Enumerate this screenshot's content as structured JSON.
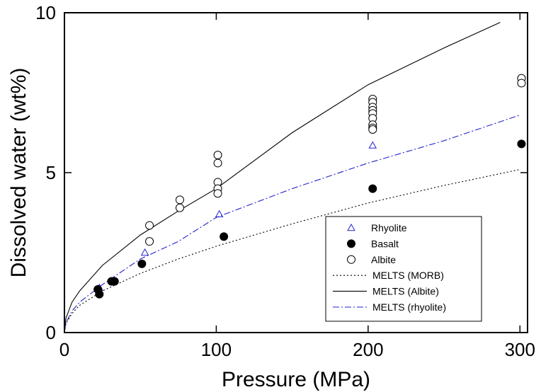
{
  "chart_data": {
    "type": "scatter",
    "xlabel": "Pressure (MPa)",
    "ylabel": "Dissolved water (wt%)",
    "xlim": [
      0,
      305
    ],
    "ylim": [
      0,
      10
    ],
    "x_ticks": [
      0,
      100,
      200,
      300
    ],
    "y_ticks": [
      0,
      5,
      10
    ],
    "x_tick_labels": [
      "0",
      "100",
      "200",
      "300"
    ],
    "y_tick_labels": [
      "0",
      "5",
      "10"
    ],
    "grid": false,
    "legend_position": "bottom-right",
    "series": [
      {
        "name": "Rhyolite",
        "kind": "points",
        "marker": "open-triangle",
        "color": "#2323cc",
        "points": [
          {
            "x": 23,
            "y": 1.4
          },
          {
            "x": 53,
            "y": 2.5
          },
          {
            "x": 102,
            "y": 3.7
          },
          {
            "x": 203,
            "y": 5.85
          }
        ]
      },
      {
        "name": "Basalt",
        "kind": "points",
        "marker": "filled-circle",
        "color": "#000000",
        "points": [
          {
            "x": 22,
            "y": 1.35
          },
          {
            "x": 23,
            "y": 1.2
          },
          {
            "x": 31,
            "y": 1.6
          },
          {
            "x": 33,
            "y": 1.6
          },
          {
            "x": 51,
            "y": 2.15
          },
          {
            "x": 105,
            "y": 3.0
          },
          {
            "x": 203,
            "y": 4.5
          },
          {
            "x": 301,
            "y": 5.9
          }
        ]
      },
      {
        "name": "Albite",
        "kind": "points",
        "marker": "open-circle",
        "color": "#000000",
        "points": [
          {
            "x": 56,
            "y": 3.35
          },
          {
            "x": 56,
            "y": 2.85
          },
          {
            "x": 76,
            "y": 4.15
          },
          {
            "x": 76,
            "y": 3.9
          },
          {
            "x": 101,
            "y": 5.55
          },
          {
            "x": 101,
            "y": 5.3
          },
          {
            "x": 101,
            "y": 4.7
          },
          {
            "x": 101,
            "y": 4.5
          },
          {
            "x": 101,
            "y": 4.35
          },
          {
            "x": 203,
            "y": 7.3
          },
          {
            "x": 203,
            "y": 7.2
          },
          {
            "x": 203,
            "y": 7.05
          },
          {
            "x": 203,
            "y": 6.95
          },
          {
            "x": 203,
            "y": 6.85
          },
          {
            "x": 203,
            "y": 6.7
          },
          {
            "x": 203,
            "y": 6.5
          },
          {
            "x": 203,
            "y": 6.4
          },
          {
            "x": 203,
            "y": 6.35
          },
          {
            "x": 301,
            "y": 7.95
          },
          {
            "x": 301,
            "y": 7.8
          }
        ]
      },
      {
        "name": "MELTS (MORB)",
        "kind": "line",
        "style": "dotted",
        "color": "#000000",
        "points": [
          {
            "x": 0,
            "y": 0
          },
          {
            "x": 1,
            "y": 0.28
          },
          {
            "x": 5,
            "y": 0.6
          },
          {
            "x": 10,
            "y": 0.85
          },
          {
            "x": 25,
            "y": 1.3
          },
          {
            "x": 50,
            "y": 1.85
          },
          {
            "x": 75,
            "y": 2.3
          },
          {
            "x": 100,
            "y": 2.7
          },
          {
            "x": 150,
            "y": 3.4
          },
          {
            "x": 200,
            "y": 4.05
          },
          {
            "x": 250,
            "y": 4.6
          },
          {
            "x": 300,
            "y": 5.1
          }
        ]
      },
      {
        "name": "MELTS (Albite)",
        "kind": "line",
        "style": "solid",
        "color": "#000000",
        "points": [
          {
            "x": 0,
            "y": 0
          },
          {
            "x": 1,
            "y": 0.45
          },
          {
            "x": 5,
            "y": 0.95
          },
          {
            "x": 10,
            "y": 1.3
          },
          {
            "x": 25,
            "y": 2.1
          },
          {
            "x": 50,
            "y": 3.05
          },
          {
            "x": 75,
            "y": 3.8
          },
          {
            "x": 100,
            "y": 4.5
          },
          {
            "x": 150,
            "y": 6.25
          },
          {
            "x": 200,
            "y": 7.75
          },
          {
            "x": 250,
            "y": 8.9
          },
          {
            "x": 287,
            "y": 9.7
          }
        ]
      },
      {
        "name": "MELTS (rhyolite)",
        "kind": "line",
        "style": "dash-dot",
        "color": "#2323cc",
        "points": [
          {
            "x": 0,
            "y": 0
          },
          {
            "x": 1,
            "y": 0.3
          },
          {
            "x": 5,
            "y": 0.68
          },
          {
            "x": 10,
            "y": 0.95
          },
          {
            "x": 25,
            "y": 1.5
          },
          {
            "x": 50,
            "y": 2.3
          },
          {
            "x": 75,
            "y": 2.85
          },
          {
            "x": 100,
            "y": 3.6
          },
          {
            "x": 150,
            "y": 4.5
          },
          {
            "x": 200,
            "y": 5.3
          },
          {
            "x": 250,
            "y": 6.0
          },
          {
            "x": 300,
            "y": 6.8
          }
        ]
      }
    ],
    "legend_order": [
      "Rhyolite",
      "Basalt",
      "Albite",
      "MELTS (MORB)",
      "MELTS (Albite)",
      "MELTS (rhyolite)"
    ]
  }
}
